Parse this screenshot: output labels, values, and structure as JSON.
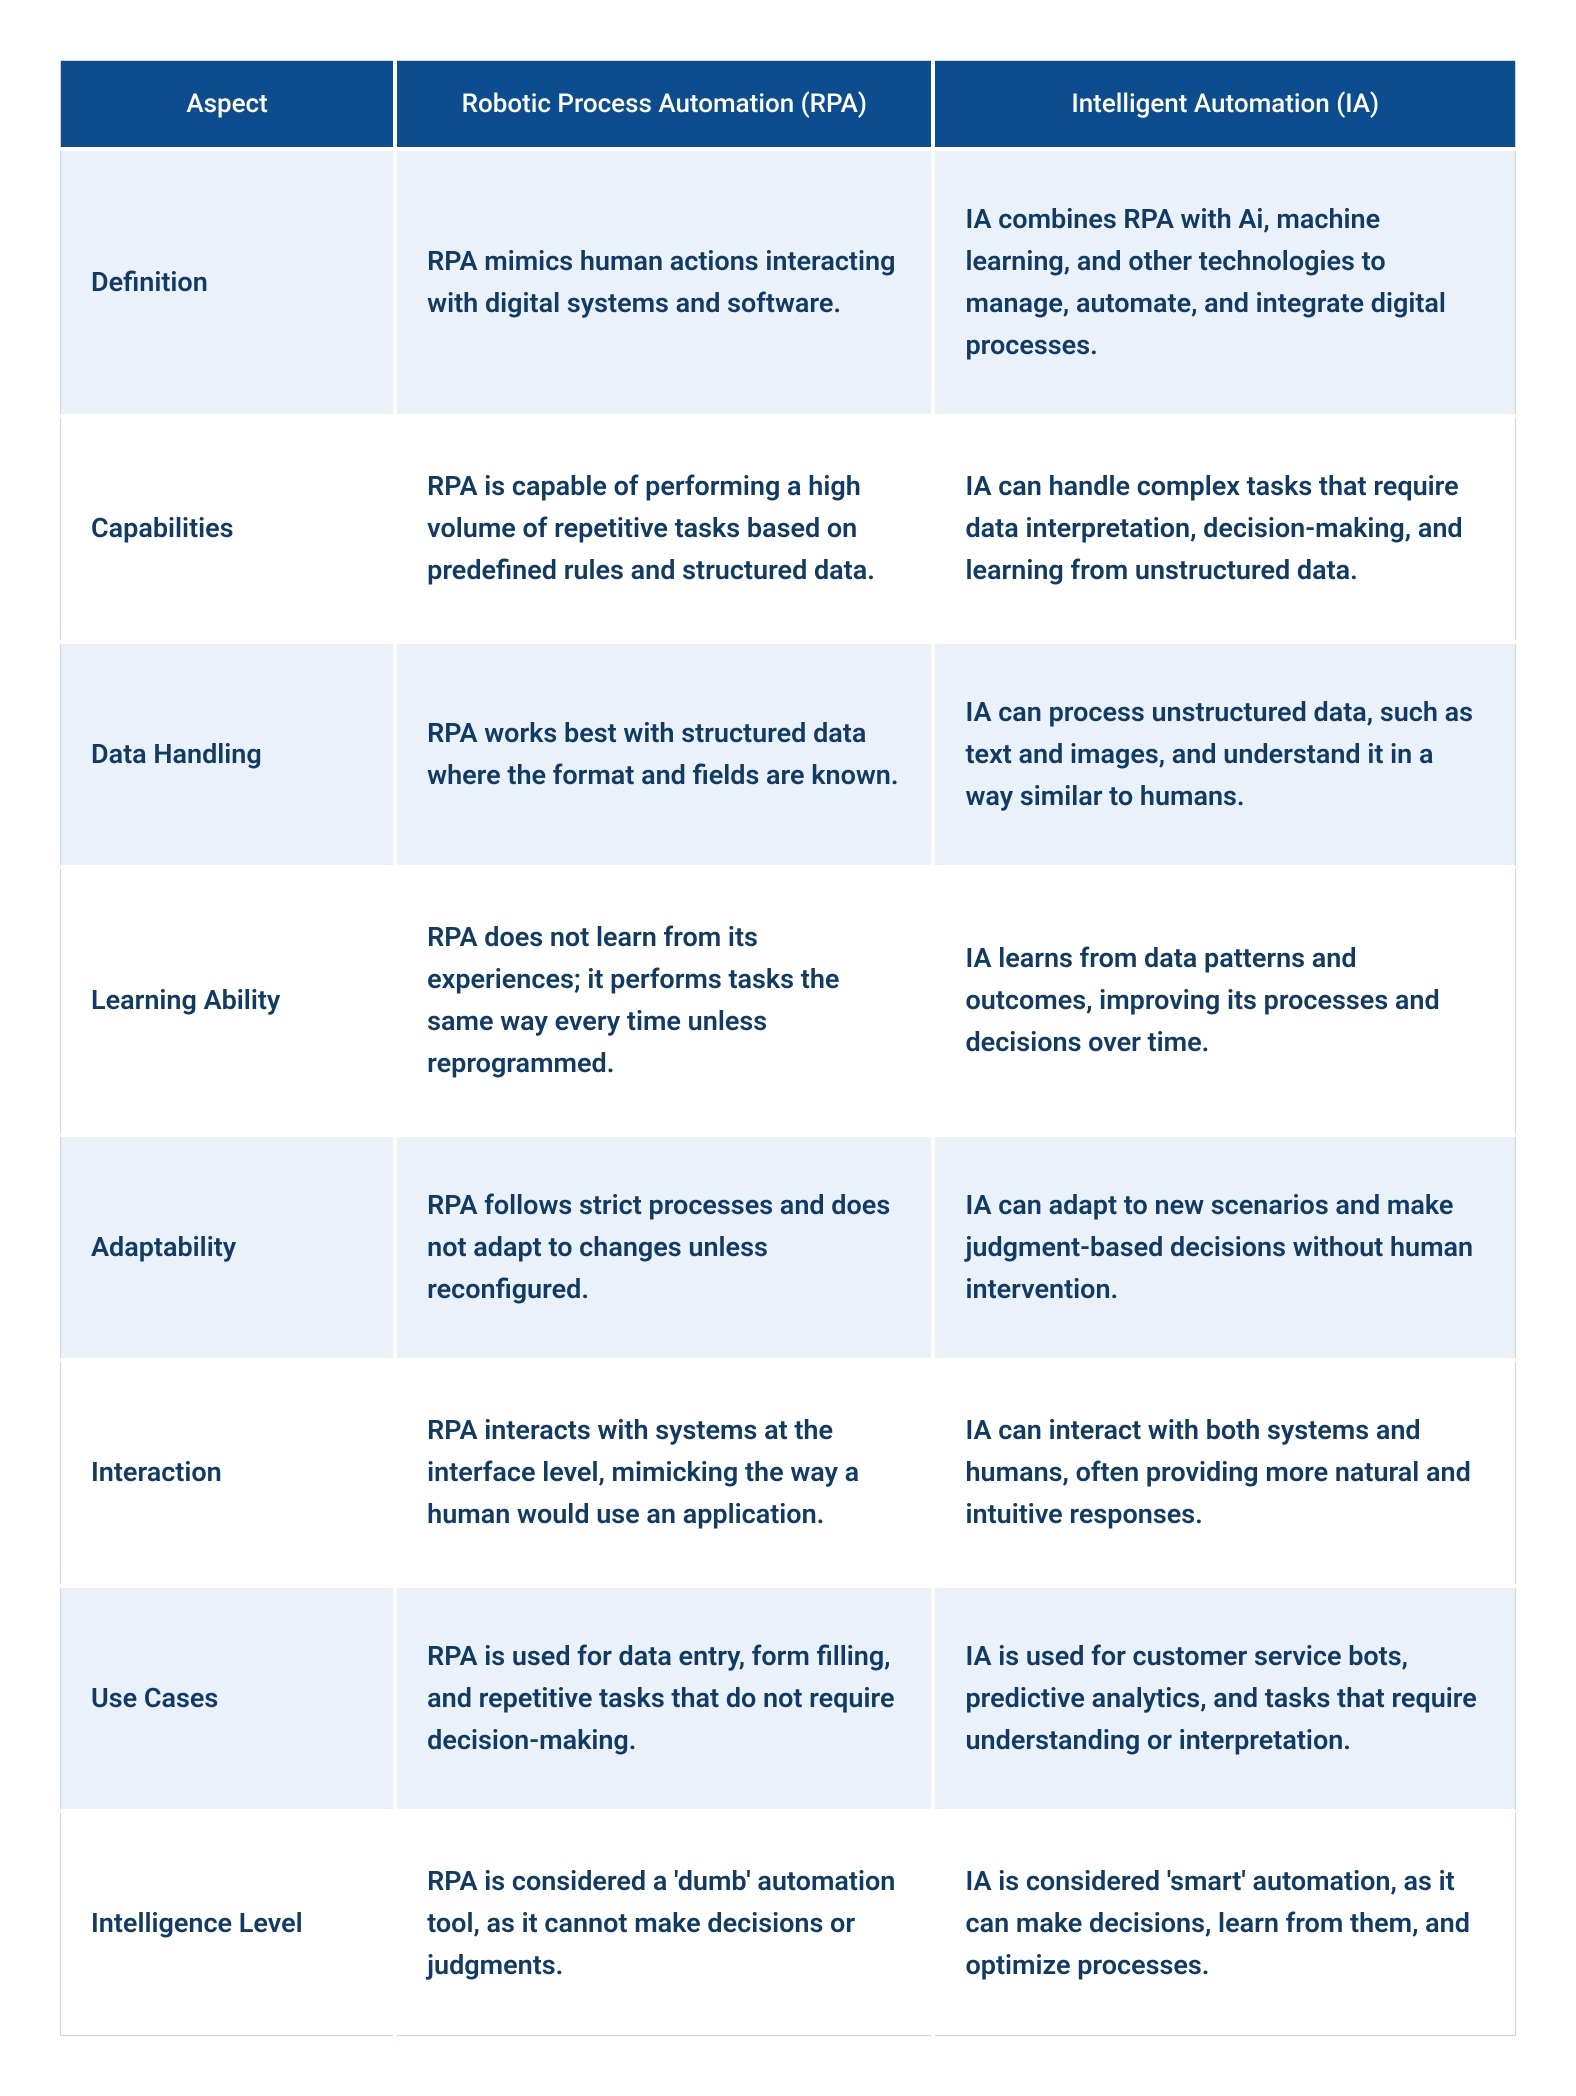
{
  "table": {
    "type": "table",
    "header_bg": "#0b4d8f",
    "header_fg": "#ffffff",
    "row_alt_bg": "#eaf1f8",
    "row_bg": "#ffffff",
    "text_color": "#0f3b66",
    "outer_border_color": "#c9d6e3",
    "cell_gap_color": "#ffffff",
    "header_fontsize_pt": 20,
    "body_fontsize_pt": 20,
    "body_fontweight": 600,
    "column_widths_pct": [
      23,
      37,
      40
    ],
    "columns": [
      "Aspect",
      "Robotic Process Automation (RPA)",
      "Intelligent Automation (IA)"
    ],
    "rows": [
      {
        "aspect": "Definition",
        "rpa": "RPA mimics human actions interacting with digital systems and software.",
        "ia": "IA combines RPA with Ai, machine learning, and other technologies to manage, automate, and integrate digital processes."
      },
      {
        "aspect": "Capabilities",
        "rpa": "RPA is capable of performing a high volume of repetitive tasks based on predefined rules and structured data.",
        "ia": "IA can handle complex tasks that require data interpretation, decision-making, and learning from unstructured data."
      },
      {
        "aspect": "Data Handling",
        "rpa": "RPA works best with structured data where the format and fields are known.",
        "ia": "IA can process unstructured data, such as text and images, and understand it in a way similar to humans."
      },
      {
        "aspect": "Learning Ability",
        "rpa": "RPA does not learn from its experiences; it performs tasks the same way every time unless reprogrammed.",
        "ia": "IA learns from data patterns and outcomes, improving its processes and decisions over time."
      },
      {
        "aspect": "Adaptability",
        "rpa": "RPA follows strict processes and does not adapt to changes unless reconfigured.",
        "ia": "IA can adapt to new scenarios and make judgment-based decisions without human intervention."
      },
      {
        "aspect": "Interaction",
        "rpa": "RPA interacts with systems at the interface level, mimicking the way a human would use an application.",
        "ia": "IA can interact with both systems and humans, often providing more natural and intuitive responses."
      },
      {
        "aspect": "Use Cases",
        "rpa": "RPA is used for data entry, form filling, and repetitive tasks that do not require decision-making.",
        "ia": "IA is used for customer service bots, predictive analytics, and tasks that require understanding or interpretation."
      },
      {
        "aspect": "Intelligence Level",
        "rpa": "RPA is considered a 'dumb' automation tool, as it cannot make decisions or judgments.",
        "ia": "IA is considered 'smart' automation, as it can make decisions, learn from them, and optimize processes."
      }
    ]
  }
}
